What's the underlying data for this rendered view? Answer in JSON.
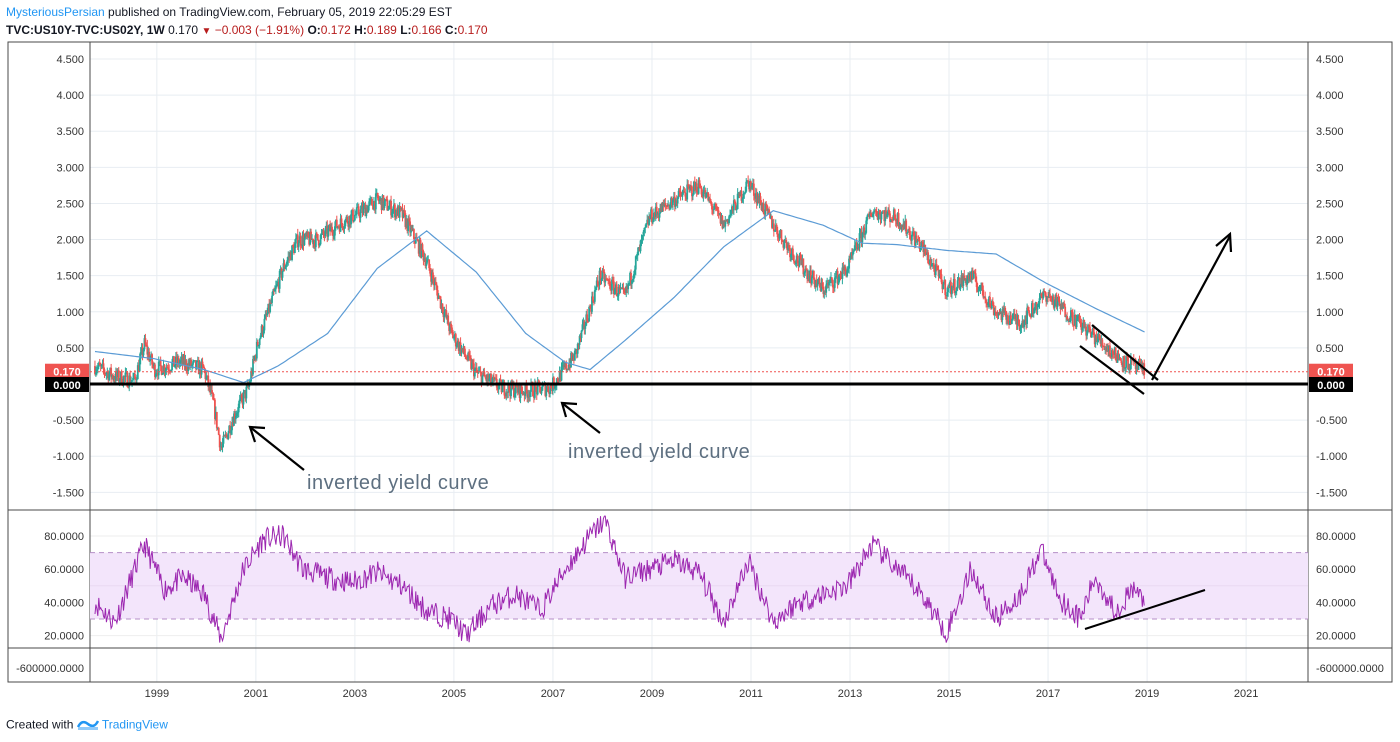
{
  "header": {
    "author": "MysteriousPersian",
    "published_text": "published on TradingView.com, February 05, 2019 22:05:29 EST",
    "symbol": "TVC:US10Y-TVC:US02Y, 1W",
    "last": "0.170",
    "change": "−0.003 (−1.91%)",
    "open_label": "O:",
    "open": "0.172",
    "high_label": "H:",
    "high": "0.189",
    "low_label": "L:",
    "low": "0.166",
    "close_label": "C:",
    "close": "0.170"
  },
  "footer": {
    "created_with": "Created with",
    "brand": "TradingView"
  },
  "annotations": {
    "inv1": "inverted yield curve",
    "inv2": "inverted yield curve"
  },
  "colors": {
    "up": "#26a69a",
    "down": "#ef5350",
    "ma": "#5b9bd5",
    "rsi": "#9c27b0",
    "rsi_band": "#f3e5fb",
    "price_tag": "#ef5350",
    "zero_tag": "#000000"
  },
  "chart_data": [
    {
      "type": "candlestick",
      "timeframe": "1W",
      "ylim": [
        -1.75,
        4.7
      ],
      "y_ticks": [
        "4.500",
        "4.000",
        "3.500",
        "3.000",
        "2.500",
        "2.000",
        "1.500",
        "1.000",
        "0.500",
        "-0.500",
        "-1.000",
        "-1.500"
      ],
      "x_ticks": [
        "1999",
        "2001",
        "2003",
        "2005",
        "2007",
        "2009",
        "2011",
        "2013",
        "2015",
        "2017",
        "2019",
        "2021"
      ],
      "last_price_label": "0.170",
      "zero_label": "0.000",
      "price_path": [
        [
          1997.8,
          0.25
        ],
        [
          1998.2,
          0.1
        ],
        [
          1998.6,
          0.05
        ],
        [
          1998.8,
          0.55
        ],
        [
          1999.0,
          0.2
        ],
        [
          1999.5,
          0.3
        ],
        [
          2000.0,
          0.2
        ],
        [
          2000.2,
          -0.3
        ],
        [
          2000.35,
          -0.9
        ],
        [
          2000.6,
          -0.45
        ],
        [
          2000.9,
          -0.05
        ],
        [
          2001.1,
          0.6
        ],
        [
          2001.3,
          1.0
        ],
        [
          2001.6,
          1.6
        ],
        [
          2001.9,
          2.0
        ],
        [
          2002.3,
          2.0
        ],
        [
          2002.7,
          2.2
        ],
        [
          2003.2,
          2.4
        ],
        [
          2003.5,
          2.55
        ],
        [
          2004.0,
          2.35
        ],
        [
          2004.5,
          1.7
        ],
        [
          2005.0,
          0.7
        ],
        [
          2005.5,
          0.15
        ],
        [
          2006.0,
          -0.05
        ],
        [
          2006.5,
          -0.1
        ],
        [
          2007.0,
          -0.05
        ],
        [
          2007.5,
          0.4
        ],
        [
          2008.0,
          1.5
        ],
        [
          2008.5,
          1.2
        ],
        [
          2009.0,
          2.3
        ],
        [
          2009.5,
          2.55
        ],
        [
          2010.0,
          2.75
        ],
        [
          2010.5,
          2.2
        ],
        [
          2011.0,
          2.8
        ],
        [
          2011.5,
          2.2
        ],
        [
          2012.0,
          1.7
        ],
        [
          2012.5,
          1.3
        ],
        [
          2013.0,
          1.6
        ],
        [
          2013.5,
          2.4
        ],
        [
          2014.0,
          2.3
        ],
        [
          2014.5,
          1.9
        ],
        [
          2015.0,
          1.3
        ],
        [
          2015.5,
          1.5
        ],
        [
          2016.0,
          1.0
        ],
        [
          2016.5,
          0.85
        ],
        [
          2017.0,
          1.25
        ],
        [
          2017.5,
          0.95
        ],
        [
          2018.0,
          0.65
        ],
        [
          2018.5,
          0.35
        ],
        [
          2019.0,
          0.17
        ]
      ],
      "moving_average": [
        [
          1997.8,
          0.45
        ],
        [
          1999.0,
          0.35
        ],
        [
          2000.0,
          0.2
        ],
        [
          2000.8,
          0.02
        ],
        [
          2001.5,
          0.25
        ],
        [
          2002.5,
          0.7
        ],
        [
          2003.5,
          1.6
        ],
        [
          2004.5,
          2.12
        ],
        [
          2005.5,
          1.55
        ],
        [
          2006.5,
          0.7
        ],
        [
          2007.3,
          0.3
        ],
        [
          2007.8,
          0.2
        ],
        [
          2008.5,
          0.6
        ],
        [
          2009.5,
          1.2
        ],
        [
          2010.5,
          1.9
        ],
        [
          2011.5,
          2.4
        ],
        [
          2012.5,
          2.2
        ],
        [
          2013.3,
          1.95
        ],
        [
          2014.0,
          1.93
        ],
        [
          2015.0,
          1.85
        ],
        [
          2016.0,
          1.8
        ],
        [
          2017.0,
          1.4
        ],
        [
          2018.0,
          1.05
        ],
        [
          2019.0,
          0.72
        ]
      ]
    },
    {
      "type": "line",
      "name": "RSI",
      "ylim": [
        -600000,
        90
      ],
      "y_ticks": [
        "80.0000",
        "60.0000",
        "40.0000",
        "20.0000",
        "-600000.0000"
      ],
      "band": [
        30,
        70
      ],
      "values_path": [
        [
          1997.8,
          40
        ],
        [
          1998.2,
          28
        ],
        [
          1998.8,
          75
        ],
        [
          1999.2,
          48
        ],
        [
          1999.6,
          55
        ],
        [
          2000.0,
          45
        ],
        [
          2000.35,
          18
        ],
        [
          2000.8,
          60
        ],
        [
          2001.2,
          78
        ],
        [
          2001.6,
          80
        ],
        [
          2002.0,
          60
        ],
        [
          2002.5,
          55
        ],
        [
          2003.0,
          52
        ],
        [
          2003.5,
          58
        ],
        [
          2004.0,
          50
        ],
        [
          2004.5,
          35
        ],
        [
          2005.0,
          30
        ],
        [
          2005.3,
          20
        ],
        [
          2005.8,
          38
        ],
        [
          2006.3,
          45
        ],
        [
          2006.8,
          35
        ],
        [
          2007.3,
          60
        ],
        [
          2007.8,
          80
        ],
        [
          2008.1,
          90
        ],
        [
          2008.5,
          55
        ],
        [
          2009.0,
          60
        ],
        [
          2009.5,
          65
        ],
        [
          2010.0,
          58
        ],
        [
          2010.5,
          28
        ],
        [
          2011.0,
          65
        ],
        [
          2011.5,
          28
        ],
        [
          2012.0,
          40
        ],
        [
          2012.5,
          45
        ],
        [
          2013.0,
          50
        ],
        [
          2013.5,
          75
        ],
        [
          2014.0,
          60
        ],
        [
          2014.5,
          45
        ],
        [
          2015.0,
          22
        ],
        [
          2015.5,
          60
        ],
        [
          2016.0,
          30
        ],
        [
          2016.5,
          45
        ],
        [
          2016.9,
          72
        ],
        [
          2017.3,
          42
        ],
        [
          2017.7,
          30
        ],
        [
          2018.0,
          55
        ],
        [
          2018.4,
          35
        ],
        [
          2018.8,
          48
        ],
        [
          2019.0,
          40
        ]
      ]
    }
  ]
}
